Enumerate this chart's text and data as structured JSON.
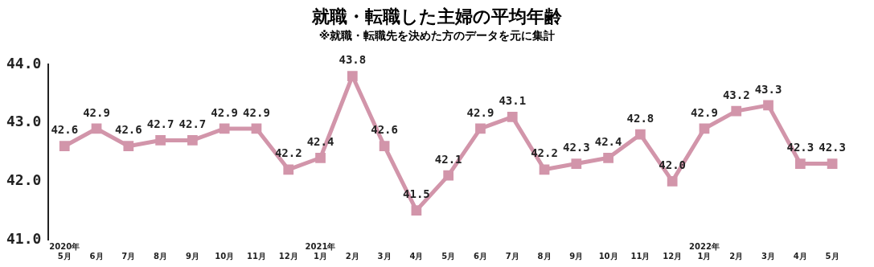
{
  "chart_data": {
    "type": "line",
    "title": "就職・転職した主婦の平均年齢",
    "subtitle": "※就職・転職先を決めた方のデータを元に集計",
    "categories": [
      "2020年\n5月",
      "6月",
      "7月",
      "8月",
      "9月",
      "10月",
      "11月",
      "12月",
      "2021年\n1月",
      "2月",
      "3月",
      "4月",
      "5月",
      "6月",
      "7月",
      "8月",
      "9月",
      "10月",
      "11月",
      "12月",
      "2022年\n1月",
      "2月",
      "3月",
      "4月",
      "5月"
    ],
    "series": [
      {
        "color": "#d295aa",
        "values": [
          42.6,
          42.9,
          42.6,
          42.7,
          42.7,
          42.9,
          42.9,
          42.2,
          42.4,
          43.8,
          42.6,
          41.5,
          42.1,
          42.9,
          43.1,
          42.2,
          42.3,
          42.4,
          42.8,
          42.0,
          42.9,
          43.2,
          43.3,
          42.3,
          42.3
        ]
      }
    ],
    "ylim": [
      41,
      44
    ],
    "yticks": [
      {
        "value": 41,
        "label": "41.0"
      },
      {
        "value": 42,
        "label": "42.0"
      },
      {
        "value": 43,
        "label": "43.0"
      },
      {
        "value": 44,
        "label": "44.0"
      }
    ],
    "value_labels": [
      "42.6",
      "42.9",
      "42.6",
      "42.7",
      "42.7",
      "42.9",
      "42.9",
      "42.2",
      "42.4",
      "43.8",
      "42.6",
      "41.5",
      "42.1",
      "42.9",
      "43.1",
      "42.2",
      "42.3",
      "42.4",
      "42.8",
      "42.0",
      "42.9",
      "43.2",
      "43.3",
      "42.3",
      "42.3"
    ],
    "marker": "square",
    "legend": false,
    "grid": false
  }
}
